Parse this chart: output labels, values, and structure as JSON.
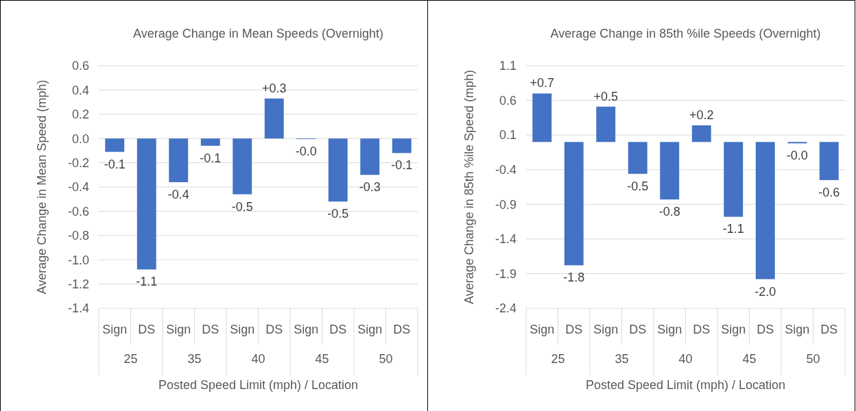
{
  "chart_data": [
    {
      "type": "bar",
      "title": "Average Change in Mean Speeds (Overnight)",
      "xlabel": "Posted Speed Limit (mph) / Location",
      "ylabel": "Average Change in Mean Speed (mph)",
      "categories": [
        "Sign",
        "DS",
        "Sign",
        "DS",
        "Sign",
        "DS",
        "Sign",
        "DS",
        "Sign",
        "DS"
      ],
      "annotations": [
        "25",
        "35",
        "40",
        "45",
        "50"
      ],
      "values": [
        -0.11,
        -1.08,
        -0.36,
        -0.06,
        -0.46,
        0.33,
        -0.005,
        -0.52,
        -0.3,
        -0.12
      ],
      "value_labels": [
        "-0.1",
        "-1.1",
        "-0.4",
        "-0.1",
        "-0.5",
        "+0.3",
        "-0.0",
        "-0.5",
        "-0.3",
        "-0.1"
      ],
      "color": "#4472c4",
      "ylim": [
        -1.4,
        0.6
      ],
      "yticks": [
        {
          "value": -1.4,
          "label": "-1.4"
        },
        {
          "value": -1.2,
          "label": "-1.2"
        },
        {
          "value": -1,
          "label": "-1.0"
        },
        {
          "value": -0.8,
          "label": "-0.8"
        },
        {
          "value": -0.6,
          "label": "-0.6"
        },
        {
          "value": -0.4,
          "label": "-0.4"
        },
        {
          "value": -0.2,
          "label": "-0.2"
        },
        {
          "value": 0,
          "label": "0.0"
        },
        {
          "value": 0.2,
          "label": "0.2"
        },
        {
          "value": 0.4,
          "label": "0.4"
        },
        {
          "value": 0.6,
          "label": "0.6"
        }
      ],
      "grid": "y"
    },
    {
      "type": "bar",
      "title": "Average Change in 85th %ile Speeds (Overnight)",
      "xlabel": "Posted Speed Limit (mph) / Location",
      "ylabel": "Average Change in 85th %ile Speed (mph)",
      "categories": [
        "Sign",
        "DS",
        "Sign",
        "DS",
        "Sign",
        "DS",
        "Sign",
        "DS",
        "Sign",
        "DS"
      ],
      "annotations": [
        "25",
        "35",
        "40",
        "45",
        "50"
      ],
      "values": [
        0.7,
        -1.78,
        0.51,
        -0.46,
        -0.83,
        0.24,
        -1.08,
        -1.98,
        -0.02,
        -0.55
      ],
      "value_labels": [
        "+0.7",
        "-1.8",
        "+0.5",
        "-0.5",
        "-0.8",
        "+0.2",
        "-1.1",
        "-2.0",
        "-0.0",
        "-0.6"
      ],
      "color": "#4472c4",
      "ylim": [
        -2.4,
        1.1
      ],
      "yticks": [
        -2.4,
        -1.9,
        -1.4,
        -0.9,
        -0.4,
        0.1,
        0.6,
        1.1
      ],
      "grid": "y"
    }
  ]
}
